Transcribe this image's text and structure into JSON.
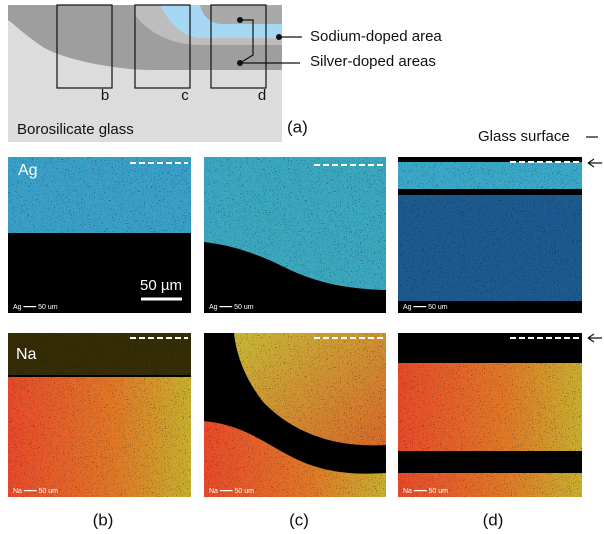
{
  "schematic": {
    "box_b": "b",
    "box_c": "c",
    "box_d": "d",
    "glass": "Borosilicate glass",
    "sodium": "Sodium-doped area",
    "silver": "Silver-doped areas",
    "caption": "(a)"
  },
  "glass_surface": "Glass surface",
  "panels": [
    {
      "caption": "(b)",
      "ag_label": "Ag",
      "na_label": "Na",
      "scale_bar": "50 µm",
      "ag_footer": "Ag ━━━ 50 um",
      "na_footer": "Na ━━━ 50 um"
    },
    {
      "caption": "(c)",
      "ag_footer": "Ag ━━━ 50 um",
      "na_footer": "Na ━━━ 50 um"
    },
    {
      "caption": "(d)",
      "ag_footer": "Ag ━━━ 50 um",
      "na_footer": "Na ━━━ 50 um"
    }
  ]
}
